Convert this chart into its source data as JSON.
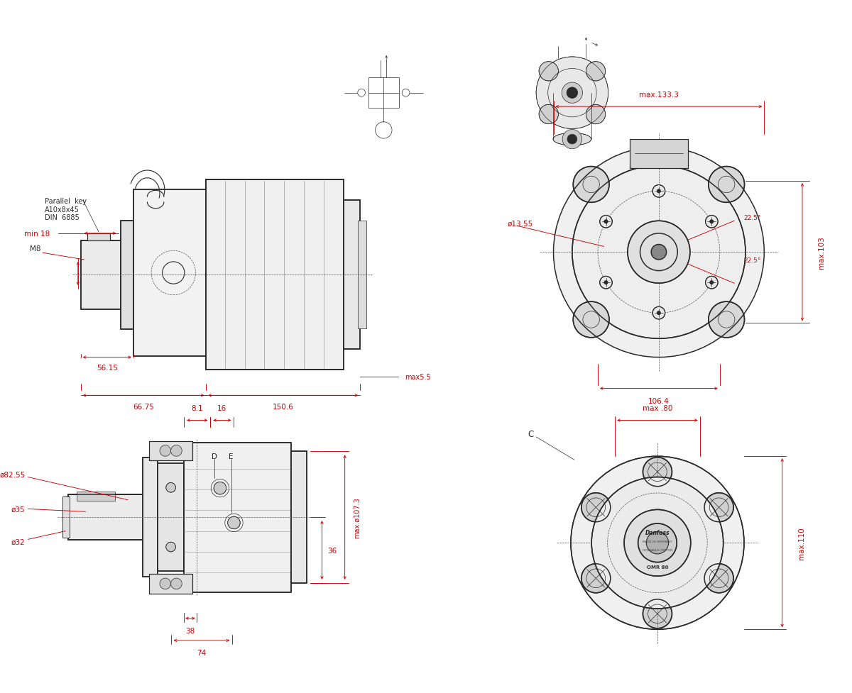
{
  "bg_color": "#ffffff",
  "line_color": "#2a2a2a",
  "dim_color": "#cc0000",
  "text_color": "#2a2a2a",
  "fig_width": 12.0,
  "fig_height": 9.78,
  "annotations": {
    "parallel_key": "Parallel  key\nA10x8x45\nDIN  6885",
    "M8": "M8",
    "min18": "min 18",
    "dim_56": "56.15",
    "dim_66": "66.75",
    "dim_150": "150.6",
    "dim_max55": "max5.5",
    "dim_133": "max.133.3",
    "dim_1355": "ø13.55",
    "dim_225a": "22.5°",
    "dim_225b": "22.5°",
    "dim_103": "max.103",
    "dim_1064": "106.4",
    "dim_81": "8.1",
    "dim_16": "16",
    "dim_D": "D",
    "dim_E": "E",
    "dim_35": "ø35",
    "dim_8255": "ø82.55",
    "dim_32": "ø32",
    "dim_38": "38",
    "dim_74": "74",
    "dim_36": "36",
    "dim_max1073": "max.ø107.3",
    "dim_maxC": "C",
    "dim_max80": "max .80",
    "dim_max110": "max.110"
  }
}
